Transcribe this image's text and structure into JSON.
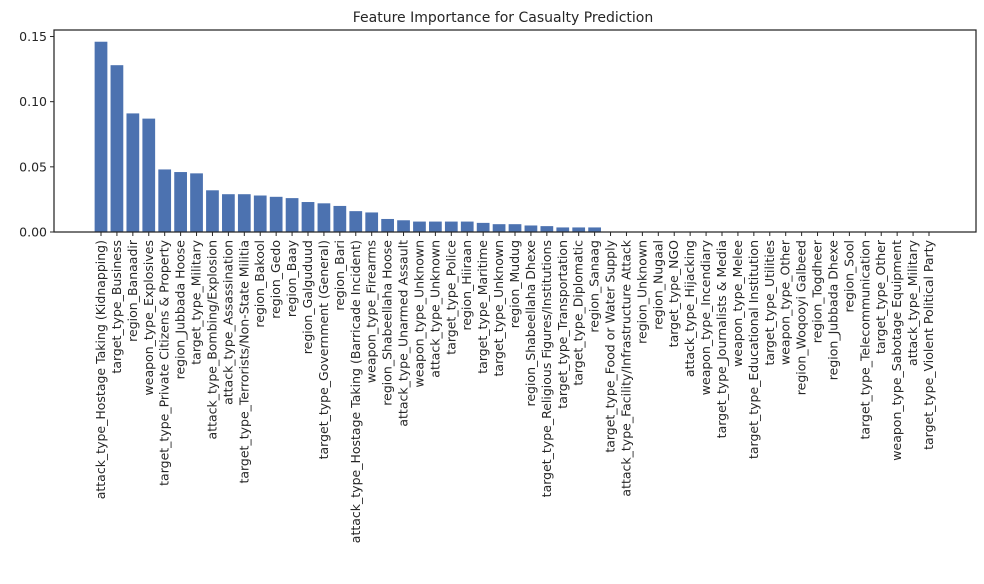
{
  "chart_data": {
    "type": "bar",
    "title": "Feature Importance for Casualty Prediction",
    "xlabel": "",
    "ylabel": "",
    "ylim": [
      0,
      0.155
    ],
    "yticks": [
      0.0,
      0.05,
      0.1,
      0.15
    ],
    "ytick_labels": [
      "0.00",
      "0.05",
      "0.10",
      "0.15"
    ],
    "grid": false,
    "bar_color": "#4c72b0",
    "categories": [
      "attack_type_Hostage Taking (Kidnapping)",
      "target_type_Business",
      "region_Banaadir",
      "weapon_type_Explosives",
      "target_type_Private Citizens & Property",
      "region_Jubbada Hoose",
      "target_type_Military",
      "attack_type_Bombing/Explosion",
      "attack_type_Assassination",
      "target_type_Terrorists/Non-State Militia",
      "region_Bakool",
      "region_Gedo",
      "region_Baay",
      "region_Galguduud",
      "target_type_Government (General)",
      "region_Bari",
      "attack_type_Hostage Taking (Barricade Incident)",
      "weapon_type_Firearms",
      "region_Shabeellaha Hoose",
      "attack_type_Unarmed Assault",
      "weapon_type_Unknown",
      "attack_type_Unknown",
      "target_type_Police",
      "region_Hiiraan",
      "target_type_Maritime",
      "target_type_Unknown",
      "region_Mudug",
      "region_Shabeellaha Dhexe",
      "target_type_Religious Figures/Institutions",
      "target_type_Transportation",
      "target_type_Diplomatic",
      "region_Sanaag",
      "target_type_Food or Water Supply",
      "attack_type_Facility/Infrastructure Attack",
      "region_Unknown",
      "region_Nugaal",
      "target_type_NGO",
      "attack_type_Hijacking",
      "weapon_type_Incendiary",
      "target_type_Journalists & Media",
      "weapon_type_Melee",
      "target_type_Educational Institution",
      "target_type_Utilities",
      "weapon_type_Other",
      "region_Woqooyi Galbeed",
      "region_Togdheer",
      "region_Jubbada Dhexe",
      "region_Sool",
      "target_type_Telecommunication",
      "target_type_Other",
      "weapon_type_Sabotage Equipment",
      "attack_type_Military",
      "target_type_Violent Political Party"
    ],
    "values": [
      0.146,
      0.128,
      0.091,
      0.087,
      0.048,
      0.046,
      0.045,
      0.032,
      0.029,
      0.029,
      0.028,
      0.027,
      0.026,
      0.023,
      0.022,
      0.02,
      0.016,
      0.015,
      0.01,
      0.009,
      0.008,
      0.008,
      0.008,
      0.008,
      0.007,
      0.006,
      0.006,
      0.005,
      0.0045,
      0.0035,
      0.0035,
      0.0035,
      0.0,
      0.0,
      0.0,
      0.0,
      0.0,
      0.0,
      0.0,
      0.0,
      0.0,
      0.0,
      0.0,
      0.0,
      0.0,
      0.0,
      0.0,
      0.0,
      0.0,
      0.0,
      0.0,
      0.0,
      0.0
    ]
  }
}
